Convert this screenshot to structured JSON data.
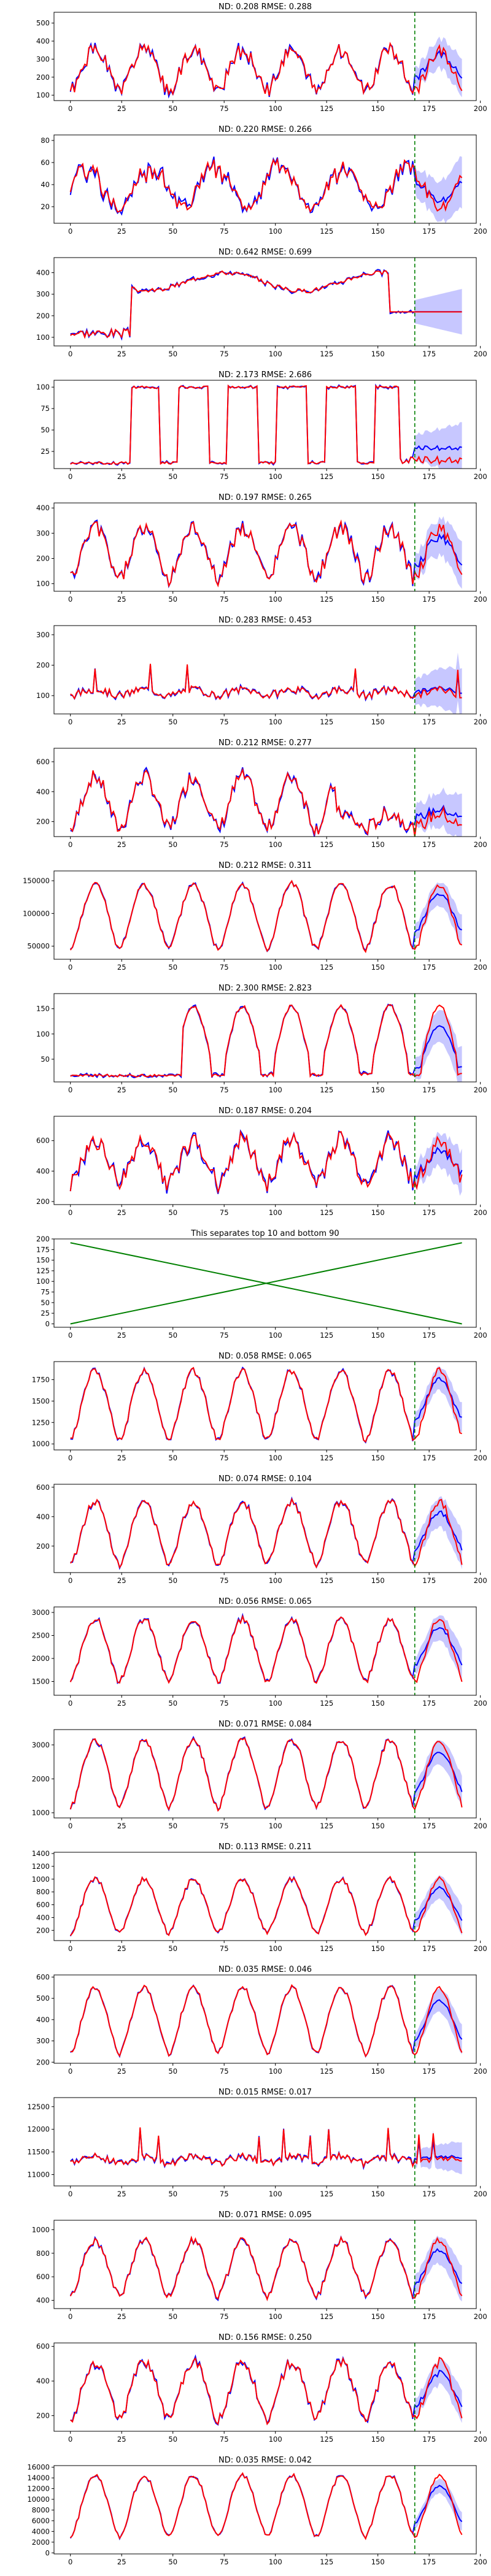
{
  "chart_data": [
    {
      "type": "line",
      "title": "ND:  0.208 RMSE:  0.288",
      "xlim": [
        -8,
        198
      ],
      "ylim": [
        70,
        560
      ],
      "yticks": [
        100,
        200,
        300,
        400,
        500
      ],
      "xticks": [
        0,
        25,
        50,
        75,
        100,
        125,
        150,
        175,
        200
      ],
      "kind": "daily",
      "base": 120,
      "amp": 230,
      "noise": 40,
      "forecast_level": 300,
      "band": 90,
      "seed": 1,
      "series": [
        {
          "name": "",
          "color": "#0000ff"
        },
        {
          "name": "",
          "color": "#ff0000"
        }
      ],
      "split_x": 168,
      "split_color": "#008000"
    },
    {
      "type": "line",
      "title": "ND:  0.220 RMSE:  0.266",
      "xlim": [
        -8,
        198
      ],
      "ylim": [
        5,
        85
      ],
      "yticks": [
        20,
        40,
        60,
        80
      ],
      "xticks": [
        0,
        25,
        50,
        75,
        100,
        125,
        150,
        175,
        200
      ],
      "kind": "noisy",
      "base": 20,
      "amp": 45,
      "noise": 10,
      "forecast_level": 35,
      "band": 20,
      "seed": 2,
      "series": [
        {
          "name": "",
          "color": "#0000ff"
        },
        {
          "name": "",
          "color": "#ff0000"
        }
      ],
      "split_x": 168,
      "split_color": "#008000"
    },
    {
      "type": "line",
      "title": "ND:  0.642 RMSE:  0.699",
      "xlim": [
        -8,
        198
      ],
      "ylim": [
        60,
        470
      ],
      "yticks": [
        100,
        200,
        300,
        400
      ],
      "xticks": [
        0,
        25,
        50,
        75,
        100,
        125,
        150,
        175,
        200
      ],
      "kind": "plateau",
      "base": 120,
      "amp": 280,
      "noise": 20,
      "forecast_level": 220,
      "band": 90,
      "seed": 3,
      "series": [
        {
          "name": "",
          "color": "#0000ff"
        },
        {
          "name": "",
          "color": "#ff0000"
        }
      ],
      "split_x": 168,
      "split_color": "#008000"
    },
    {
      "type": "line",
      "title": "ND:  2.173 RMSE:  2.686",
      "xlim": [
        -8,
        198
      ],
      "ylim": [
        5,
        108
      ],
      "yticks": [
        25,
        50,
        75,
        100
      ],
      "xticks": [
        0,
        25,
        50,
        75,
        100,
        125,
        150,
        175,
        200
      ],
      "kind": "square",
      "base": 10,
      "amp": 90,
      "noise": 3,
      "forecast_level": 50,
      "band": 25,
      "seed": 4,
      "series": [
        {
          "name": "",
          "color": "#0000ff"
        },
        {
          "name": "",
          "color": "#ff0000"
        }
      ],
      "split_x": 168,
      "split_color": "#008000"
    },
    {
      "type": "line",
      "title": "ND:  0.197 RMSE:  0.265",
      "xlim": [
        -8,
        198
      ],
      "ylim": [
        70,
        420
      ],
      "yticks": [
        100,
        200,
        300,
        400
      ],
      "xticks": [
        0,
        25,
        50,
        75,
        100,
        125,
        150,
        175,
        200
      ],
      "kind": "daily",
      "base": 120,
      "amp": 200,
      "noise": 30,
      "forecast_level": 230,
      "band": 80,
      "seed": 5,
      "series": [
        {
          "name": "",
          "color": "#0000ff"
        },
        {
          "name": "",
          "color": "#ff0000"
        }
      ],
      "split_x": 168,
      "split_color": "#008000"
    },
    {
      "type": "line",
      "title": "ND:  0.283 RMSE:  0.453",
      "xlim": [
        -8,
        198
      ],
      "ylim": [
        40,
        330
      ],
      "yticks": [
        100,
        200,
        300
      ],
      "xticks": [
        0,
        25,
        50,
        75,
        100,
        125,
        150,
        175,
        200
      ],
      "kind": "flat",
      "base": 100,
      "amp": 20,
      "noise": 12,
      "forecast_level": 130,
      "band": 70,
      "seed": 6,
      "series": [
        {
          "name": "",
          "color": "#0000ff"
        },
        {
          "name": "",
          "color": "#ff0000"
        }
      ],
      "split_x": 168,
      "split_color": "#008000"
    },
    {
      "type": "line",
      "title": "ND:  0.212 RMSE:  0.277",
      "xlim": [
        -8,
        198
      ],
      "ylim": [
        100,
        690
      ],
      "yticks": [
        200,
        400,
        600
      ],
      "xticks": [
        0,
        25,
        50,
        75,
        100,
        125,
        150,
        175,
        200
      ],
      "kind": "decay",
      "base": 150,
      "amp": 350,
      "noise": 50,
      "forecast_level": 320,
      "band": 130,
      "seed": 7,
      "series": [
        {
          "name": "",
          "color": "#0000ff"
        },
        {
          "name": "",
          "color": "#ff0000"
        }
      ],
      "split_x": 168,
      "split_color": "#008000"
    },
    {
      "type": "line",
      "title": "ND:  0.212 RMSE:  0.311",
      "xlim": [
        -8,
        198
      ],
      "ylim": [
        30000,
        165000
      ],
      "yticks": [
        50000,
        100000,
        150000
      ],
      "xticks": [
        0,
        25,
        50,
        75,
        100,
        125,
        150,
        175,
        200
      ],
      "kind": "daily",
      "base": 45000,
      "amp": 100000,
      "noise": 5000,
      "forecast_level": 110000,
      "band": 20000,
      "seed": 8,
      "series": [
        {
          "name": "",
          "color": "#0000ff"
        },
        {
          "name": "",
          "color": "#ff0000"
        }
      ],
      "split_x": 168,
      "split_color": "#008000"
    },
    {
      "type": "line",
      "title": "ND:  2.300 RMSE:  2.823",
      "xlim": [
        -8,
        198
      ],
      "ylim": [
        5,
        180
      ],
      "yticks": [
        50,
        100,
        150
      ],
      "xticks": [
        0,
        25,
        50,
        75,
        100,
        125,
        150,
        175,
        200
      ],
      "kind": "late",
      "base": 15,
      "amp": 140,
      "noise": 8,
      "forecast_level": 55,
      "band": 35,
      "seed": 9,
      "series": [
        {
          "name": "",
          "color": "#0000ff"
        },
        {
          "name": "",
          "color": "#ff0000"
        }
      ],
      "split_x": 168,
      "split_color": "#008000"
    },
    {
      "type": "line",
      "title": "ND:  0.187 RMSE:  0.204",
      "xlim": [
        -8,
        198
      ],
      "ylim": [
        180,
        760
      ],
      "yticks": [
        200,
        400,
        600
      ],
      "xticks": [
        0,
        25,
        50,
        75,
        100,
        125,
        150,
        175,
        200
      ],
      "kind": "daily",
      "base": 320,
      "amp": 280,
      "noise": 60,
      "forecast_level": 450,
      "band": 120,
      "seed": 10,
      "series": [
        {
          "name": "",
          "color": "#0000ff"
        },
        {
          "name": "",
          "color": "#ff0000"
        }
      ],
      "split_x": 168,
      "split_color": "#008000"
    },
    {
      "type": "line",
      "title": "This separates top 10 and bottom 90",
      "xlim": [
        -8,
        198
      ],
      "ylim": [
        -8,
        200
      ],
      "yticks": [
        0,
        25,
        50,
        75,
        100,
        125,
        150,
        175,
        200
      ],
      "xticks": [
        0,
        25,
        50,
        75,
        100,
        125,
        150,
        175,
        200
      ],
      "kind": "cross",
      "x": [
        0,
        191
      ],
      "series": [
        {
          "name": "",
          "color": "#008000",
          "values": [
            0,
            191
          ]
        },
        {
          "name": "",
          "color": "#008000",
          "values": [
            191,
            0
          ]
        }
      ]
    },
    {
      "type": "line",
      "title": "ND:  0.058 RMSE:  0.065",
      "xlim": [
        -8,
        198
      ],
      "ylim": [
        930,
        1960
      ],
      "yticks": [
        1000,
        1250,
        1500,
        1750
      ],
      "xticks": [
        0,
        25,
        50,
        75,
        100,
        125,
        150,
        175,
        200
      ],
      "kind": "daily",
      "base": 1050,
      "amp": 800,
      "noise": 40,
      "forecast_level": 1600,
      "band": 150,
      "seed": 12,
      "series": [
        {
          "name": "",
          "color": "#0000ff"
        },
        {
          "name": "",
          "color": "#ff0000"
        }
      ],
      "split_x": 168,
      "split_color": "#008000"
    },
    {
      "type": "line",
      "title": "ND:  0.074 RMSE:  0.104",
      "xlim": [
        -8,
        198
      ],
      "ylim": [
        20,
        620
      ],
      "yticks": [
        200,
        400,
        600
      ],
      "xticks": [
        0,
        25,
        50,
        75,
        100,
        125,
        150,
        175,
        200
      ],
      "kind": "daily",
      "base": 80,
      "amp": 420,
      "noise": 25,
      "forecast_level": 320,
      "band": 110,
      "seed": 13,
      "series": [
        {
          "name": "",
          "color": "#0000ff"
        },
        {
          "name": "",
          "color": "#ff0000"
        }
      ],
      "split_x": 168,
      "split_color": "#008000"
    },
    {
      "type": "line",
      "title": "ND:  0.056 RMSE:  0.065",
      "xlim": [
        -8,
        198
      ],
      "ylim": [
        1200,
        3120
      ],
      "yticks": [
        1500,
        2000,
        2500,
        3000
      ],
      "xticks": [
        0,
        25,
        50,
        75,
        100,
        125,
        150,
        175,
        200
      ],
      "kind": "daily",
      "base": 1500,
      "amp": 1350,
      "noise": 70,
      "forecast_level": 2400,
      "band": 300,
      "seed": 14,
      "series": [
        {
          "name": "",
          "color": "#0000ff"
        },
        {
          "name": "",
          "color": "#ff0000"
        }
      ],
      "split_x": 168,
      "split_color": "#008000"
    },
    {
      "type": "line",
      "title": "ND:  0.071 RMSE:  0.084",
      "xlim": [
        -8,
        198
      ],
      "ylim": [
        850,
        3450
      ],
      "yticks": [
        1000,
        2000,
        3000
      ],
      "xticks": [
        0,
        25,
        50,
        75,
        100,
        125,
        150,
        175,
        200
      ],
      "kind": "daily",
      "base": 1150,
      "amp": 2000,
      "noise": 90,
      "forecast_level": 2300,
      "band": 400,
      "seed": 15,
      "series": [
        {
          "name": "",
          "color": "#0000ff"
        },
        {
          "name": "",
          "color": "#ff0000"
        }
      ],
      "split_x": 168,
      "split_color": "#008000"
    },
    {
      "type": "line",
      "title": "ND:  0.113 RMSE:  0.211",
      "xlim": [
        -8,
        198
      ],
      "ylim": [
        40,
        1420
      ],
      "yticks": [
        200,
        400,
        600,
        800,
        1000,
        1200,
        1400
      ],
      "xticks": [
        0,
        25,
        50,
        75,
        100,
        125,
        150,
        175,
        200
      ],
      "kind": "daily",
      "base": 150,
      "amp": 850,
      "noise": 40,
      "forecast_level": 650,
      "band": 200,
      "seed": 16,
      "series": [
        {
          "name": "",
          "color": "#0000ff"
        },
        {
          "name": "",
          "color": "#ff0000"
        }
      ],
      "split_x": 168,
      "split_color": "#008000"
    },
    {
      "type": "line",
      "title": "ND:  0.035 RMSE:  0.046",
      "xlim": [
        -8,
        198
      ],
      "ylim": [
        195,
        610
      ],
      "yticks": [
        200,
        300,
        400,
        500,
        600
      ],
      "xticks": [
        0,
        25,
        50,
        75,
        100,
        125,
        150,
        175,
        200
      ],
      "kind": "daily",
      "base": 240,
      "amp": 310,
      "noise": 12,
      "forecast_level": 400,
      "band": 60,
      "seed": 17,
      "series": [
        {
          "name": "",
          "color": "#0000ff"
        },
        {
          "name": "",
          "color": "#ff0000"
        }
      ],
      "split_x": 168,
      "split_color": "#008000"
    },
    {
      "type": "line",
      "title": "ND:  0.015 RMSE:  0.017",
      "xlim": [
        -8,
        198
      ],
      "ylim": [
        10750,
        12700
      ],
      "yticks": [
        11000,
        11500,
        12000,
        12500
      ],
      "xticks": [
        0,
        25,
        50,
        75,
        100,
        125,
        150,
        175,
        200
      ],
      "kind": "flat",
      "base": 11250,
      "amp": 150,
      "noise": 80,
      "forecast_level": 11450,
      "band": 300,
      "seed": 18,
      "series": [
        {
          "name": "",
          "color": "#0000ff"
        },
        {
          "name": "",
          "color": "#ff0000"
        }
      ],
      "split_x": 168,
      "split_color": "#008000"
    },
    {
      "type": "line",
      "title": "ND:  0.071 RMSE:  0.095",
      "xlim": [
        -8,
        198
      ],
      "ylim": [
        330,
        1080
      ],
      "yticks": [
        400,
        600,
        800,
        1000
      ],
      "xticks": [
        0,
        25,
        50,
        75,
        100,
        125,
        150,
        175,
        200
      ],
      "kind": "daily",
      "base": 430,
      "amp": 480,
      "noise": 30,
      "forecast_level": 700,
      "band": 130,
      "seed": 19,
      "series": [
        {
          "name": "",
          "color": "#0000ff"
        },
        {
          "name": "",
          "color": "#ff0000"
        }
      ],
      "split_x": 168,
      "split_color": "#008000"
    },
    {
      "type": "line",
      "title": "ND:  0.156 RMSE:  0.250",
      "xlim": [
        -8,
        198
      ],
      "ylim": [
        110,
        620
      ],
      "yticks": [
        200,
        400,
        600
      ],
      "xticks": [
        0,
        25,
        50,
        75,
        100,
        125,
        150,
        175,
        200
      ],
      "kind": "daily",
      "base": 180,
      "amp": 330,
      "noise": 30,
      "forecast_level": 350,
      "band": 80,
      "seed": 20,
      "series": [
        {
          "name": "",
          "color": "#0000ff"
        },
        {
          "name": "",
          "color": "#ff0000"
        }
      ],
      "split_x": 168,
      "split_color": "#008000"
    },
    {
      "type": "line",
      "title": "ND:  0.035 RMSE:  0.042",
      "xlim": [
        -8,
        198
      ],
      "ylim": [
        -200,
        16300
      ],
      "yticks": [
        0,
        2000,
        4000,
        6000,
        8000,
        10000,
        12000,
        14000,
        16000
      ],
      "xticks": [
        0,
        25,
        50,
        75,
        100,
        125,
        150,
        175,
        200
      ],
      "kind": "daily",
      "base": 3000,
      "amp": 11500,
      "noise": 400,
      "forecast_level": 9500,
      "band": 1500,
      "seed": 21,
      "series": [
        {
          "name": "",
          "color": "#0000ff"
        },
        {
          "name": "",
          "color": "#ff0000"
        }
      ],
      "split_x": 168,
      "split_color": "#008000"
    }
  ]
}
